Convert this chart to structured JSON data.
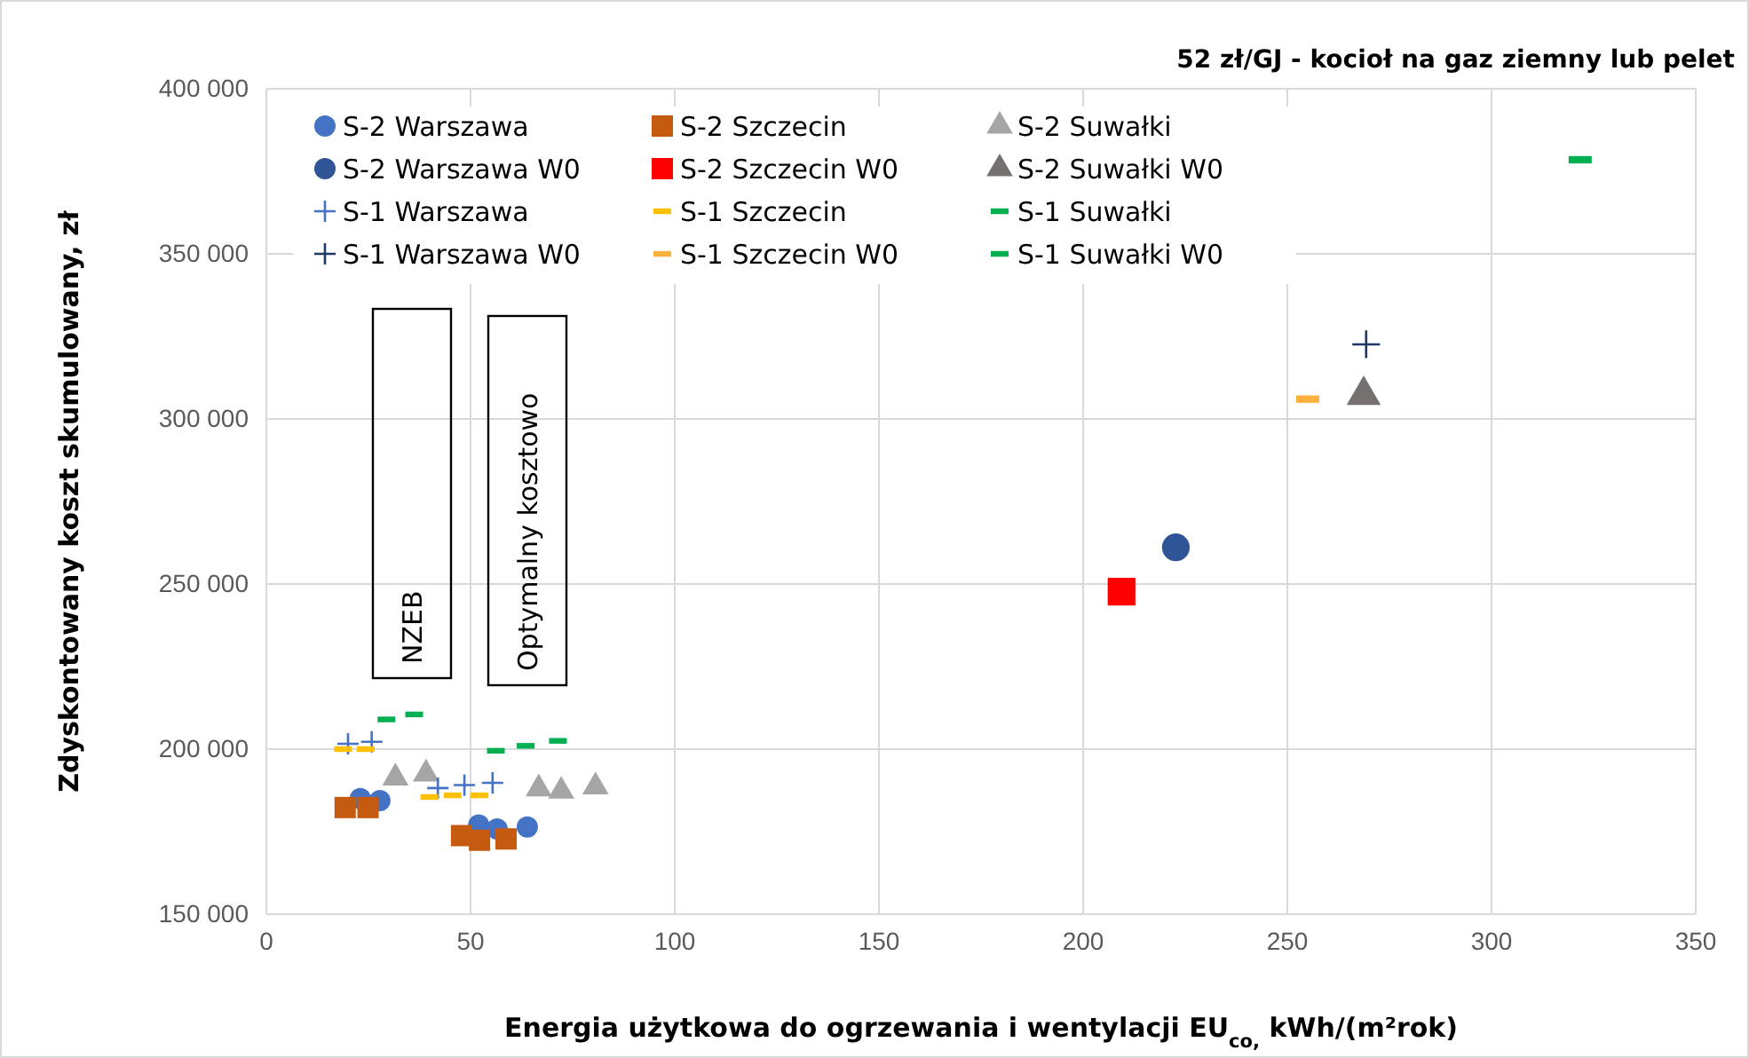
{
  "chart_data": {
    "type": "scatter",
    "title": "52 zł/GJ - kocioł na gaz ziemny lub pelet",
    "xlabel": "Energia użytkowa do ogrzewania i wentylacji EU$_{co,}$ kWh/(m²rok)",
    "ylabel": "Zdyskontowany koszt skumulowany, zł",
    "xlim": [
      0,
      350
    ],
    "xticks": [
      0,
      50,
      100,
      150,
      200,
      250,
      300,
      350
    ],
    "ylim": [
      150000,
      400000
    ],
    "yticks": [
      {
        "value": 150000,
        "label": "150 000"
      },
      {
        "value": 200000,
        "label": "200 000"
      },
      {
        "value": 250000,
        "label": "250 000"
      },
      {
        "value": 300000,
        "label": "300 000"
      },
      {
        "value": 350000,
        "label": "350 000"
      },
      {
        "value": 400000,
        "label": "400 000"
      }
    ],
    "grid": true,
    "legend": "top left",
    "annotations": [
      "NZEB",
      "Optymalny kosztowo"
    ],
    "series": [
      {
        "name": "S-2 Warszawa",
        "color": "#4472c4",
        "marker": "circle",
        "x": [
          23,
          27.8,
          52,
          56.5,
          63.9
        ],
        "values": [
          185000,
          184400,
          177000,
          175800,
          176400
        ]
      },
      {
        "name": "S-2 Szczecin",
        "color": "#c55a11",
        "marker": "square",
        "x": [
          19.3,
          24.9,
          47.8,
          52.2,
          58.7
        ],
        "values": [
          182300,
          182300,
          173800,
          172400,
          172800
        ]
      },
      {
        "name": "S-2 Suwałki",
        "color": "#a5a5a5",
        "marker": "triangle",
        "x": [
          31.6,
          39.1,
          66.7,
          72.2,
          80.6
        ],
        "values": [
          191300,
          192500,
          188000,
          187300,
          188600
        ]
      },
      {
        "name": "S-2 Warszawa W0",
        "color": "#2f5597",
        "marker": "circle",
        "x": [
          222.7
        ],
        "values": [
          261100
        ]
      },
      {
        "name": "S-2 Szczecin W0",
        "color": "#ff0000",
        "marker": "square",
        "x": [
          209.4
        ],
        "values": [
          247700
        ]
      },
      {
        "name": "S-2 Suwałki W0",
        "color": "#767171",
        "marker": "triangle",
        "x": [
          268.7
        ],
        "values": [
          307200
        ]
      },
      {
        "name": "S-1 Warszawa",
        "color": "#4472c4",
        "marker": "cross",
        "x": [
          20,
          25.8,
          42,
          48.5,
          55.4
        ],
        "values": [
          201600,
          202200,
          188200,
          189100,
          189800
        ]
      },
      {
        "name": "S-1 Szczecin",
        "color": "#ffc000",
        "x": [
          18.8,
          24.3,
          39.9,
          45.6,
          52.2
        ],
        "values": [
          200000,
          200000,
          185500,
          186000,
          186000
        ]
      },
      {
        "name": "S-1 Suwałki",
        "color": "#00b050",
        "x": [
          29.4,
          36.2,
          56.2,
          63.5,
          71.4
        ],
        "values": [
          209000,
          210500,
          199500,
          201000,
          202500
        ]
      },
      {
        "name": "S-1 Warszawa W0",
        "color": "#203864",
        "marker": "cross",
        "x": [
          269.3
        ],
        "values": [
          322600
        ]
      },
      {
        "name": "S-1 Szczecin W0",
        "color": "#ffb13d",
        "x": [
          255
        ],
        "values": [
          306000
        ]
      },
      {
        "name": "S-1 Suwałki W0",
        "color": "#00b050",
        "x": [
          321.7
        ],
        "values": [
          378500
        ]
      }
    ]
  }
}
